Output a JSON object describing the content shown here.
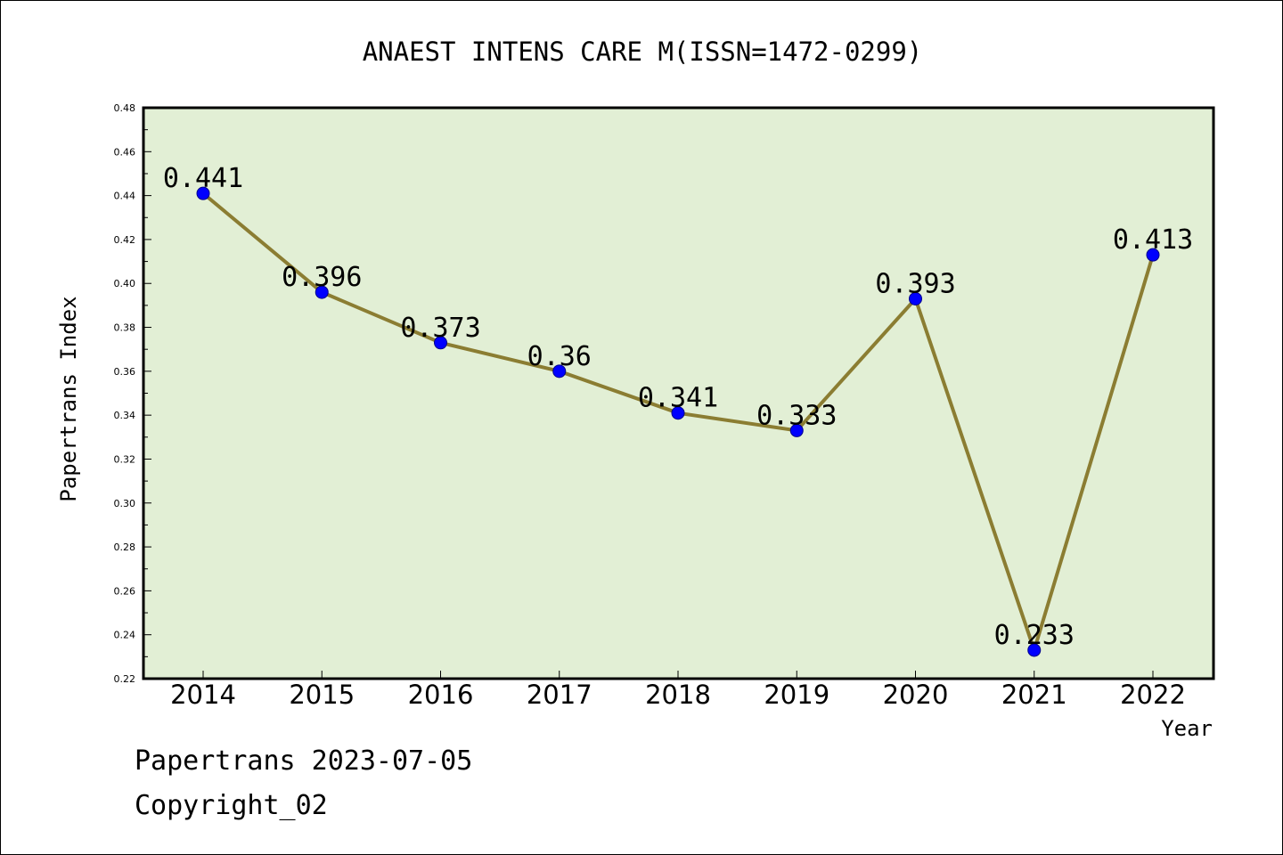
{
  "colors": {
    "plot_background": "#e2efd5",
    "line": "#8b7d32",
    "marker": "#0000ff",
    "frame": "#000000"
  },
  "chart_data": {
    "type": "line",
    "title": "ANAEST INTENS CARE M(ISSN=1472-0299)",
    "xlabel": "Year",
    "ylabel": "Papertrans Index",
    "categories": [
      "2014",
      "2015",
      "2016",
      "2017",
      "2018",
      "2019",
      "2020",
      "2021",
      "2022"
    ],
    "values": [
      0.441,
      0.396,
      0.373,
      0.36,
      0.341,
      0.333,
      0.393,
      0.233,
      0.413
    ],
    "data_labels": [
      "0.441",
      "0.396",
      "0.373",
      "0.36",
      "0.341",
      "0.333",
      "0.393",
      "0.233",
      "0.413"
    ],
    "ylim": [
      0.22,
      0.48
    ],
    "yticks": [
      "0.22",
      "0.24",
      "0.26",
      "0.28",
      "0.30",
      "0.32",
      "0.34",
      "0.36",
      "0.38",
      "0.40",
      "0.42",
      "0.44",
      "0.46",
      "0.48"
    ],
    "grid": false,
    "legend": "none"
  },
  "footer": {
    "line1": "Papertrans 2023-07-05",
    "line2": "Copyright_02"
  }
}
